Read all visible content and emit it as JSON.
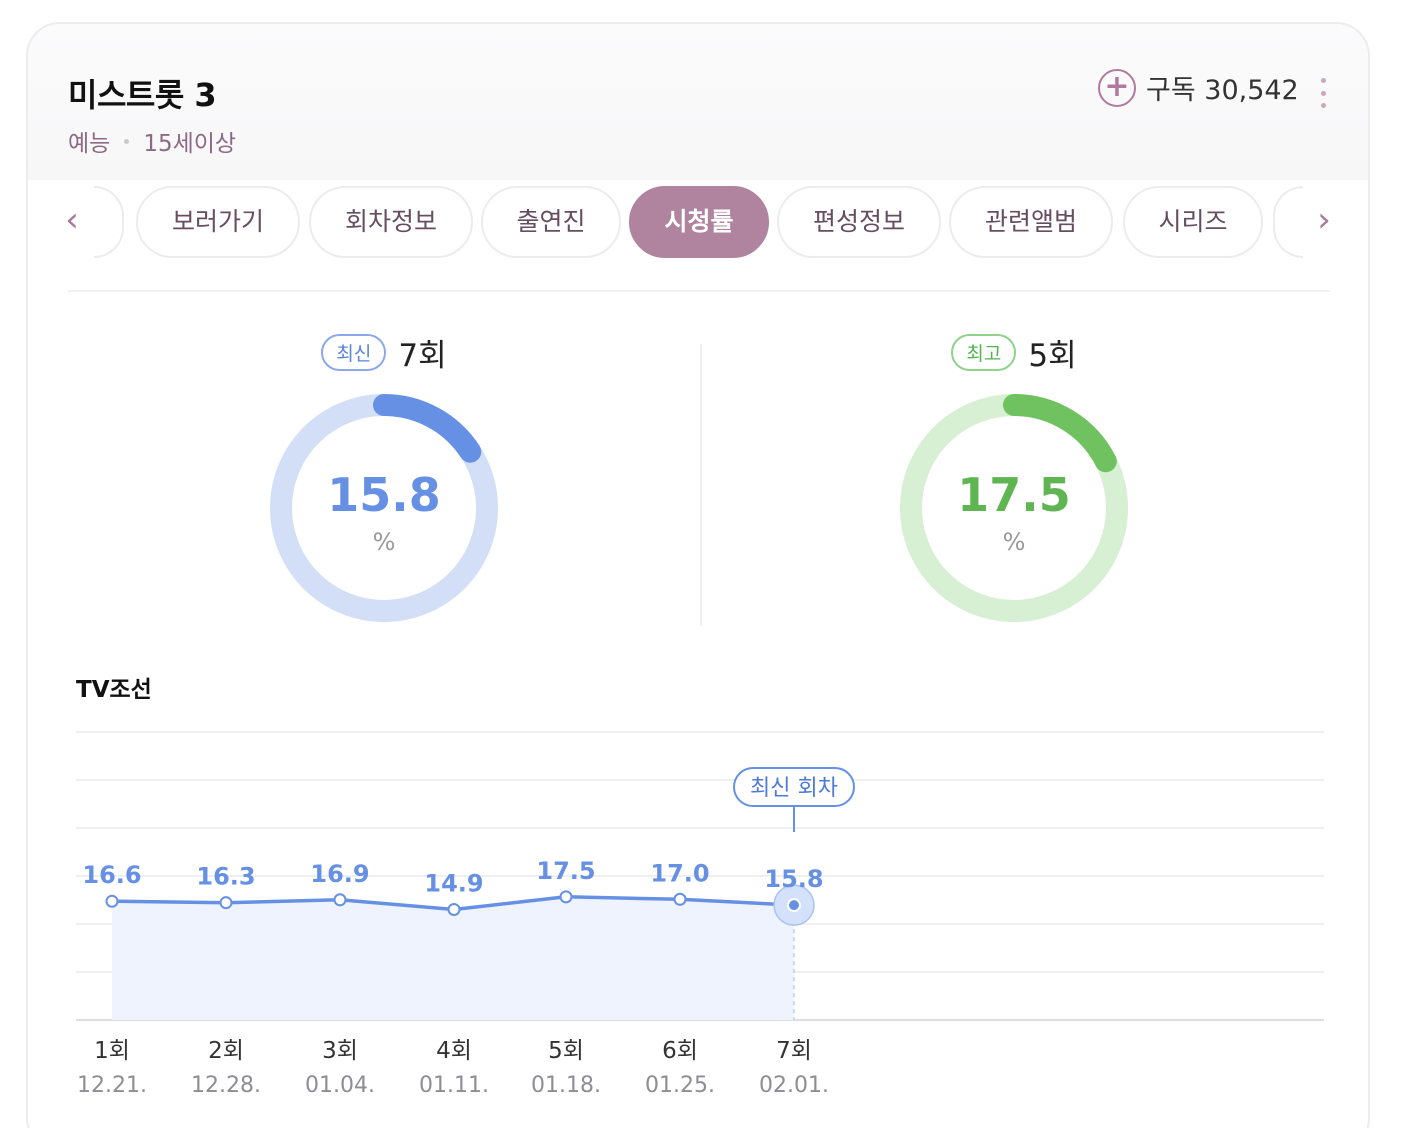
{
  "program": {
    "title": "미스트롯 3",
    "genre": "예능",
    "rating": "15세이상",
    "subscribe_label": "구독 30,542",
    "subscribe_icon": "plus-circle-icon",
    "more_icon": "vertical-dots-icon"
  },
  "tabs": {
    "prev_icon": "chevron-left-icon",
    "next_icon": "chevron-right-icon",
    "prev_label": "‹",
    "next_label": "›",
    "items": [
      {
        "label": "보러가기"
      },
      {
        "label": "회차정보"
      },
      {
        "label": "출연진"
      },
      {
        "label": "시청률",
        "active": true
      },
      {
        "label": "편성정보"
      },
      {
        "label": "관련앨범"
      },
      {
        "label": "시리즈"
      }
    ]
  },
  "latest": {
    "badge": "최신",
    "episode": "7회",
    "value": "15.8",
    "unit": "%",
    "color": "#6690e4",
    "track_color": "#d3dff7"
  },
  "best": {
    "badge": "최고",
    "episode": "5회",
    "value": "17.5",
    "unit": "%",
    "color": "#70c160",
    "track_color": "#d7efd3"
  },
  "chart": {
    "channel": "TV조선",
    "marker_label": "최신 회차",
    "line_color": "#6690e4"
  },
  "chart_data": {
    "type": "line",
    "categories": [
      "1회",
      "2회",
      "3회",
      "4회",
      "5회",
      "6회",
      "7회"
    ],
    "dates": [
      "12.21.",
      "12.28.",
      "01.04.",
      "01.11.",
      "01.18.",
      "01.25.",
      "02.01."
    ],
    "values": [
      16.6,
      16.3,
      16.9,
      14.9,
      17.5,
      17.0,
      15.8
    ],
    "value_labels": [
      "16.6",
      "16.3",
      "16.9",
      "14.9",
      "17.5",
      "17.0",
      "15.8"
    ],
    "ring_scale_max": 100,
    "highlight_index": 6,
    "grid": true,
    "area_fill": true
  }
}
